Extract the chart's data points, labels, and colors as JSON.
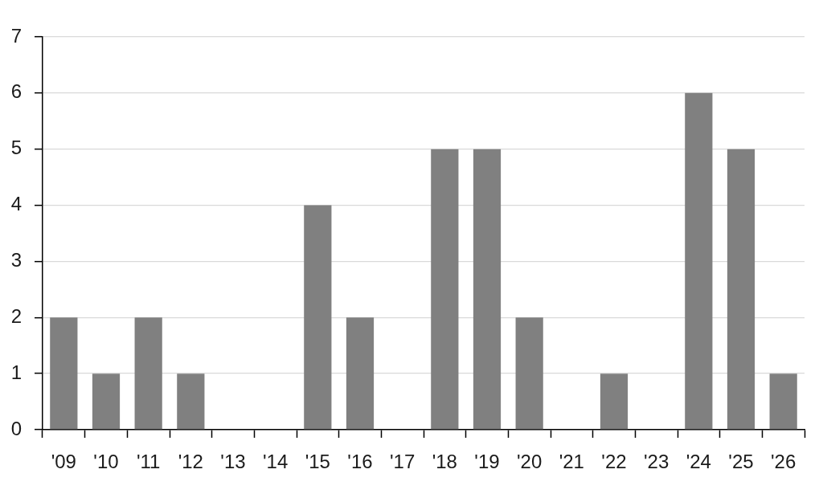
{
  "chart_data": {
    "type": "bar",
    "categories": [
      "'09",
      "'10",
      "'11",
      "'12",
      "'13",
      "'14",
      "'15",
      "'16",
      "'17",
      "'18",
      "'19",
      "'20",
      "'21",
      "'22",
      "'23",
      "'24",
      "'25",
      "'26"
    ],
    "values": [
      2,
      1,
      2,
      1,
      0,
      0,
      4,
      2,
      0,
      5,
      5,
      2,
      0,
      1,
      0,
      6,
      5,
      1
    ],
    "color": "#808080",
    "ylim": [
      0,
      7
    ],
    "yticks": [
      0,
      1,
      2,
      3,
      4,
      5,
      6,
      7
    ],
    "grid": "y"
  }
}
